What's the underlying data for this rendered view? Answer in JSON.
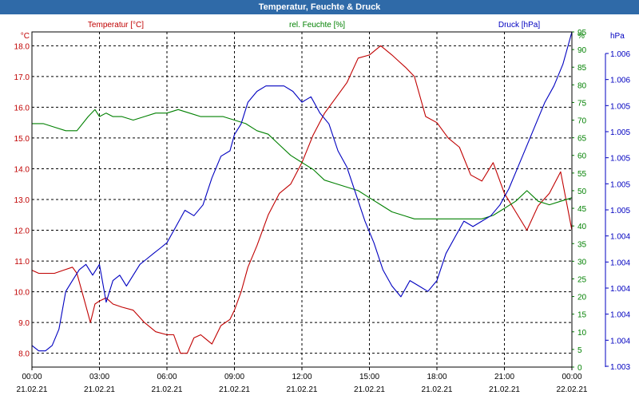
{
  "chart_data": {
    "type": "line",
    "title": "Temperatur, Feuchte & Druck",
    "axes": {
      "left": {
        "unit": "°C",
        "legend": "Temperatur [°C]",
        "color": "#c00000",
        "ylim": [
          7.55,
          18.45
        ],
        "ticks": [
          "8.0",
          "9.0",
          "10.0",
          "11.0",
          "12.0",
          "13.0",
          "14.0",
          "15.0",
          "16.0",
          "17.0",
          "18.0"
        ]
      },
      "right": {
        "unit": "%",
        "legend": "rel. Feuchte [%]",
        "color": "#008000",
        "ylim": [
          0,
          95
        ],
        "ticks": [
          "0",
          "5",
          "10",
          "15",
          "20",
          "25",
          "30",
          "35",
          "40",
          "45",
          "50",
          "55",
          "60",
          "65",
          "70",
          "75",
          "80",
          "85",
          "90",
          "95"
        ]
      },
      "far_right": {
        "unit": "hPa",
        "legend": "Druck [hPa]",
        "color": "#0000c0",
        "ylim": [
          1003.0,
          1006.1
        ],
        "ticks": [
          "1.003",
          "1.004",
          "1.004",
          "1.004",
          "1.004",
          "1.004",
          "1.005",
          "1.005",
          "1.005",
          "1.005",
          "1.005",
          "1.006",
          "1.006"
        ]
      }
    },
    "x_ticks": [
      {
        "time": "00:00",
        "date": "21.02.21"
      },
      {
        "time": "03:00",
        "date": "21.02.21"
      },
      {
        "time": "06:00",
        "date": "21.02.21"
      },
      {
        "time": "09:00",
        "date": "21.02.21"
      },
      {
        "time": "12:00",
        "date": "21.02.21"
      },
      {
        "time": "15:00",
        "date": "21.02.21"
      },
      {
        "time": "18:00",
        "date": "21.02.21"
      },
      {
        "time": "21:00",
        "date": "21.02.21"
      },
      {
        "time": "00:00",
        "date": "22.02.21"
      }
    ],
    "xlim_hours": [
      0,
      24
    ],
    "grid": true,
    "series": [
      {
        "name": "Temperatur",
        "axis": "left",
        "color": "#c00000",
        "x": [
          0,
          0.3,
          0.6,
          1.0,
          1.4,
          1.8,
          2.0,
          2.3,
          2.6,
          2.8,
          3.0,
          3.3,
          3.6,
          4.0,
          4.5,
          5.0,
          5.5,
          6.0,
          6.3,
          6.6,
          6.9,
          7.2,
          7.5,
          8.0,
          8.4,
          8.8,
          9.0,
          9.3,
          9.6,
          10.0,
          10.5,
          11.0,
          11.5,
          12.0,
          12.5,
          13.0,
          13.5,
          14.0,
          14.5,
          15.0,
          15.5,
          16.0,
          16.3,
          16.6,
          17.0,
          17.5,
          18.0,
          18.5,
          19.0,
          19.5,
          20.0,
          20.5,
          21.0,
          21.5,
          22.0,
          22.5,
          23.0,
          23.5,
          24.0
        ],
        "values": [
          10.7,
          10.6,
          10.6,
          10.6,
          10.7,
          10.8,
          10.6,
          9.8,
          9.0,
          9.6,
          9.7,
          9.8,
          9.6,
          9.5,
          9.4,
          9.0,
          8.7,
          8.6,
          8.6,
          8.0,
          8.0,
          8.5,
          8.6,
          8.3,
          8.9,
          9.1,
          9.4,
          10.0,
          10.8,
          11.5,
          12.5,
          13.2,
          13.5,
          14.2,
          15.1,
          15.8,
          16.3,
          16.8,
          17.6,
          17.7,
          18.0,
          17.7,
          17.5,
          17.3,
          17.0,
          15.7,
          15.5,
          15.0,
          14.7,
          13.8,
          13.6,
          14.2,
          13.2,
          12.6,
          12.0,
          12.8,
          13.2,
          13.9,
          12.0
        ]
      },
      {
        "name": "rel. Feuchte",
        "axis": "right",
        "color": "#008000",
        "x": [
          0,
          0.5,
          1.0,
          1.5,
          2.0,
          2.5,
          2.8,
          3.0,
          3.3,
          3.6,
          4.0,
          4.5,
          5.0,
          5.5,
          6.0,
          6.5,
          7.0,
          7.5,
          8.0,
          8.5,
          9.0,
          9.5,
          10.0,
          10.5,
          11.0,
          11.5,
          12.0,
          12.5,
          13.0,
          13.5,
          14.0,
          14.5,
          15.0,
          15.5,
          16.0,
          16.5,
          17.0,
          17.5,
          18.0,
          18.5,
          19.0,
          19.5,
          20.0,
          20.5,
          21.0,
          21.5,
          22.0,
          22.5,
          23.0,
          23.5,
          24.0
        ],
        "values": [
          69,
          69,
          68,
          67,
          67,
          71,
          73,
          71,
          72,
          71,
          71,
          70,
          71,
          72,
          72,
          73,
          72,
          71,
          71,
          71,
          70,
          69,
          67,
          66,
          63,
          60,
          58,
          56,
          53,
          52,
          51,
          50,
          48,
          46,
          44,
          43,
          42,
          42,
          42,
          42,
          42,
          42,
          42,
          43,
          45,
          47,
          50,
          47,
          46,
          47,
          48
        ]
      },
      {
        "name": "Druck",
        "axis": "far_right",
        "color": "#0000c0",
        "x": [
          0,
          0.3,
          0.6,
          0.9,
          1.2,
          1.5,
          1.8,
          2.1,
          2.4,
          2.7,
          3.0,
          3.3,
          3.6,
          3.9,
          4.2,
          4.5,
          4.8,
          5.1,
          5.4,
          5.7,
          6.0,
          6.4,
          6.8,
          7.2,
          7.6,
          8.0,
          8.4,
          8.8,
          9.0,
          9.3,
          9.6,
          10.0,
          10.4,
          10.8,
          11.2,
          11.6,
          12.0,
          12.4,
          12.8,
          13.2,
          13.6,
          14.0,
          14.4,
          14.8,
          15.2,
          15.6,
          16.0,
          16.4,
          16.8,
          17.2,
          17.6,
          18.0,
          18.4,
          18.8,
          19.2,
          19.6,
          20.0,
          20.4,
          20.8,
          21.2,
          21.6,
          22.0,
          22.4,
          22.8,
          23.2,
          23.6,
          24.0
        ],
        "values": [
          1003.2,
          1003.15,
          1003.15,
          1003.2,
          1003.35,
          1003.7,
          1003.8,
          1003.9,
          1003.95,
          1003.85,
          1003.95,
          1003.6,
          1003.8,
          1003.85,
          1003.75,
          1003.85,
          1003.95,
          1004.0,
          1004.05,
          1004.1,
          1004.15,
          1004.3,
          1004.45,
          1004.4,
          1004.5,
          1004.75,
          1004.95,
          1005.0,
          1005.15,
          1005.25,
          1005.45,
          1005.55,
          1005.6,
          1005.6,
          1005.6,
          1005.55,
          1005.45,
          1005.5,
          1005.35,
          1005.25,
          1005.0,
          1004.85,
          1004.6,
          1004.35,
          1004.15,
          1003.9,
          1003.75,
          1003.65,
          1003.8,
          1003.75,
          1003.7,
          1003.8,
          1004.05,
          1004.2,
          1004.35,
          1004.3,
          1004.35,
          1004.4,
          1004.5,
          1004.65,
          1004.85,
          1005.05,
          1005.25,
          1005.45,
          1005.6,
          1005.8,
          1006.1
        ]
      }
    ]
  }
}
